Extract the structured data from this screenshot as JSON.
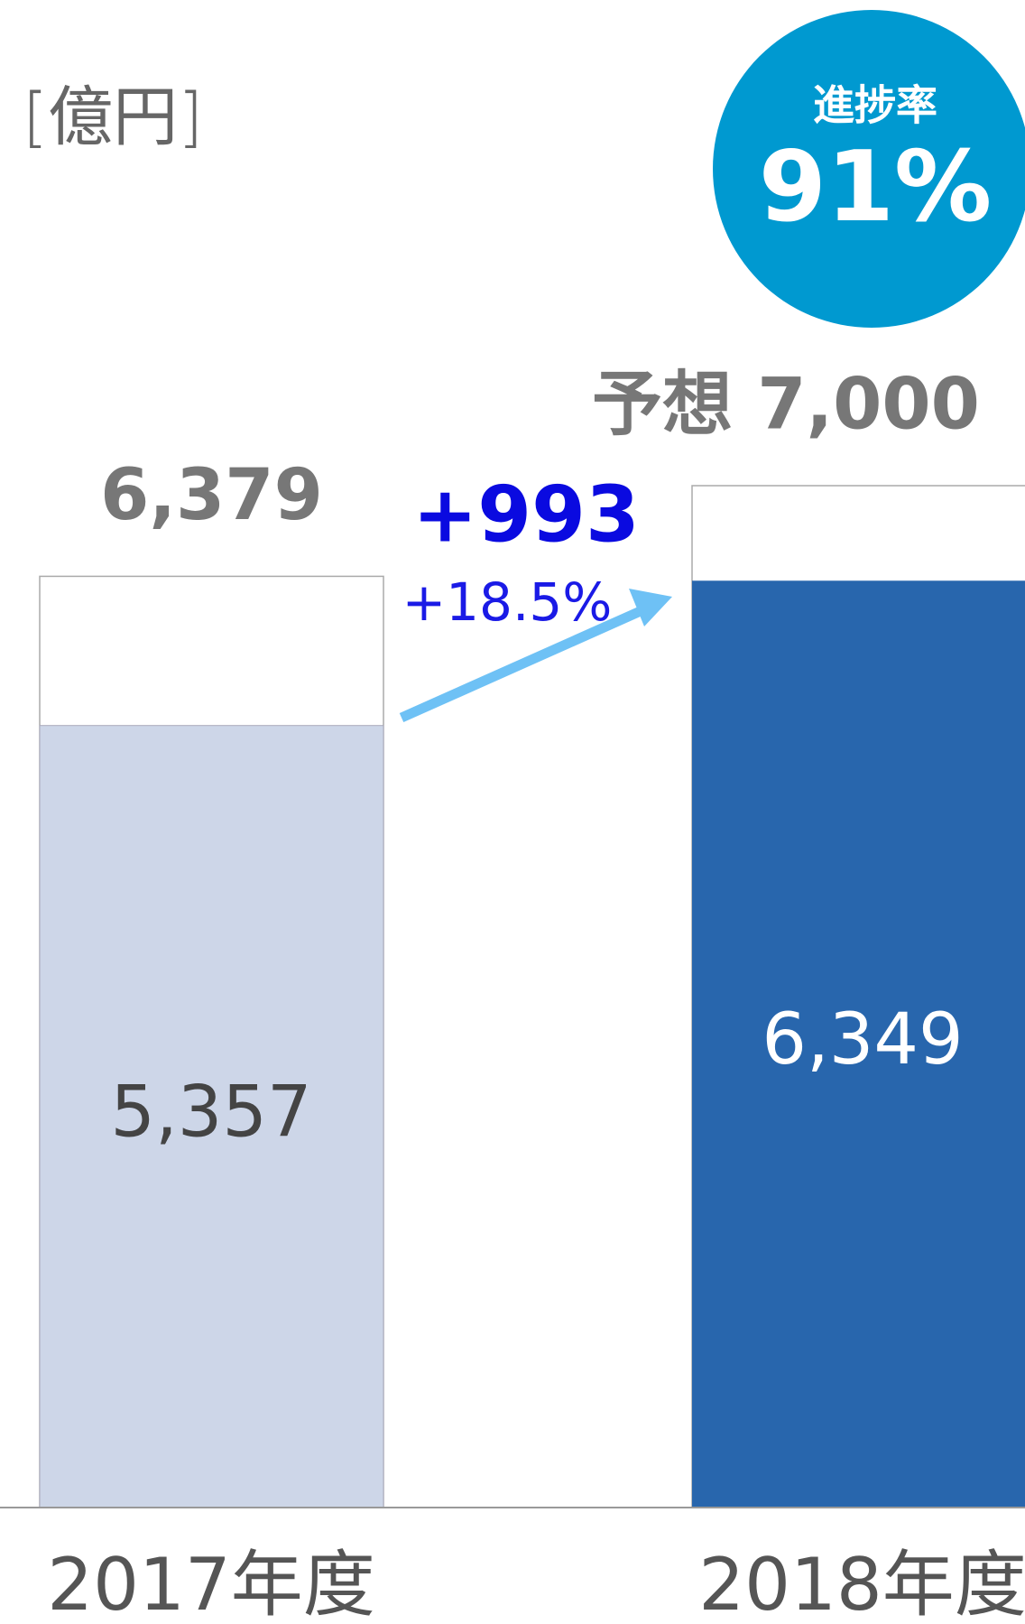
{
  "chart_data": {
    "type": "bar",
    "unit": "[億円]",
    "categories": [
      "2017年度",
      "2018年度"
    ],
    "series": [
      {
        "values": [
          6379,
          7000
        ],
        "value_labels": [
          "6,379",
          "予想 7,000"
        ],
        "color": "#ffffff"
      },
      {
        "values": [
          5357,
          6349
        ],
        "value_labels": [
          "5,357",
          "6,349"
        ],
        "colors": [
          "#cdd6e8",
          "#2866ad"
        ]
      }
    ],
    "ylim": [
      0,
      7000
    ],
    "annotations": [
      "+993",
      "+18.5%"
    ],
    "badge": {
      "label": "進捗率",
      "value_label": "91%",
      "color": "#0099d0"
    },
    "arrow_color": "#6ec1f5"
  }
}
